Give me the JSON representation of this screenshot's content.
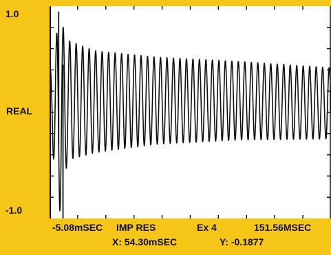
{
  "colors": {
    "background": "#f5c518",
    "plot": "#ffffff",
    "trace": "#111111"
  },
  "y_axis": {
    "top": "1.0",
    "middle": "REAL",
    "bottom": "-1.0"
  },
  "footer": {
    "x_start": "-5.08mSEC",
    "measurement": "IMP RES",
    "channel": "Ex 4",
    "x_end": "151.56MSEC",
    "cursor_x": "X: 54.30mSEC",
    "cursor_y": "Y: -0.1877"
  },
  "chart_data": {
    "type": "line",
    "title": "",
    "xlabel": "",
    "ylabel": "REAL",
    "xlim": [
      -5.08,
      151.56
    ],
    "ylim": [
      -1.0,
      1.0
    ],
    "x_unit": "mSEC",
    "grid": false,
    "series": [
      {
        "description": "impulse response, decaying oscillation about ~0.1",
        "offset": 0.1,
        "approx_frequency_cycles_per_msec": 0.277,
        "envelope": [
          {
            "x": -5.08,
            "y_low": -0.1,
            "y_high": 0.35
          },
          {
            "x": 0.5,
            "y_low": -0.95,
            "y_high": 0.9
          },
          {
            "x": 5.0,
            "y_low": -0.45,
            "y_high": 0.68
          },
          {
            "x": 20.0,
            "y_low": -0.38,
            "y_high": 0.58
          },
          {
            "x": 54.3,
            "y_low": -0.3,
            "y_high": 0.52
          },
          {
            "x": 100.0,
            "y_low": -0.26,
            "y_high": 0.48
          },
          {
            "x": 151.56,
            "y_low": -0.25,
            "y_high": 0.42
          }
        ]
      }
    ],
    "cursor": {
      "x": 54.3,
      "y": -0.1877
    }
  }
}
